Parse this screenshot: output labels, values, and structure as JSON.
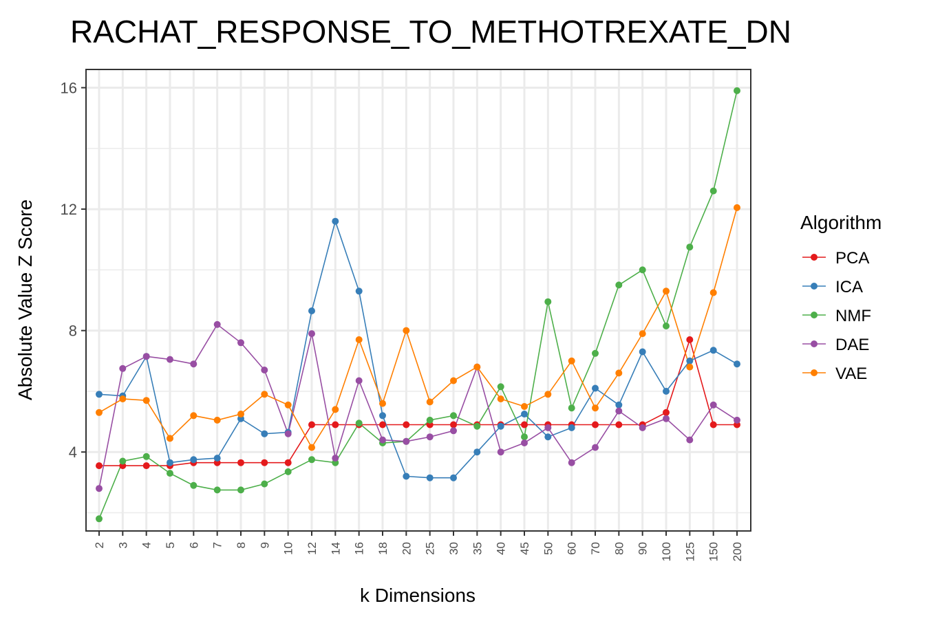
{
  "chart_data": {
    "type": "line",
    "title": "RACHAT_RESPONSE_TO_METHOTREXATE_DN",
    "xlabel": "k Dimensions",
    "ylabel": "Absolute Value Z Score",
    "categories": [
      "2",
      "3",
      "4",
      "5",
      "6",
      "7",
      "8",
      "9",
      "10",
      "12",
      "14",
      "16",
      "18",
      "20",
      "25",
      "30",
      "35",
      "40",
      "45",
      "50",
      "60",
      "70",
      "80",
      "90",
      "100",
      "125",
      "150",
      "200"
    ],
    "ylim": [
      1.4,
      16.6
    ],
    "yticks": [
      4,
      8,
      12,
      16
    ],
    "grid": true,
    "legend": {
      "title": "Algorithm",
      "placement": "right"
    },
    "series": [
      {
        "name": "PCA",
        "color": "#E41A1C",
        "values": [
          3.55,
          3.55,
          3.55,
          3.55,
          3.65,
          3.65,
          3.65,
          3.65,
          3.65,
          4.9,
          4.9,
          4.9,
          4.9,
          4.9,
          4.9,
          4.9,
          4.9,
          4.9,
          4.9,
          4.9,
          4.9,
          4.9,
          4.9,
          4.9,
          5.3,
          7.7,
          4.9,
          4.9
        ]
      },
      {
        "name": "ICA",
        "color": "#377EB8",
        "values": [
          5.9,
          5.85,
          7.15,
          3.65,
          3.75,
          3.8,
          5.1,
          4.6,
          4.65,
          8.65,
          11.6,
          9.3,
          5.2,
          3.2,
          3.15,
          3.15,
          4.0,
          4.85,
          5.25,
          4.5,
          4.8,
          6.1,
          5.55,
          7.3,
          6.0,
          7.0,
          7.35,
          6.9
        ]
      },
      {
        "name": "NMF",
        "color": "#4DAF4A",
        "values": [
          1.8,
          3.7,
          3.85,
          3.3,
          2.9,
          2.75,
          2.75,
          2.95,
          3.35,
          3.75,
          3.65,
          4.95,
          4.3,
          4.35,
          5.05,
          5.2,
          4.85,
          6.15,
          4.5,
          8.95,
          5.45,
          7.25,
          9.5,
          10.0,
          8.15,
          10.75,
          12.6,
          15.9
        ]
      },
      {
        "name": "DAE",
        "color": "#984EA3",
        "values": [
          2.8,
          6.75,
          7.15,
          7.05,
          6.9,
          8.2,
          7.6,
          6.7,
          4.6,
          7.9,
          3.8,
          6.35,
          4.4,
          4.35,
          4.5,
          4.7,
          6.8,
          4.0,
          4.3,
          4.8,
          3.65,
          4.15,
          5.35,
          4.8,
          5.1,
          4.4,
          5.55,
          5.05
        ]
      },
      {
        "name": "VAE",
        "color": "#FF7F00",
        "values": [
          5.3,
          5.75,
          5.7,
          4.45,
          5.2,
          5.05,
          5.25,
          5.9,
          5.55,
          4.15,
          5.4,
          7.7,
          5.6,
          8.0,
          5.65,
          6.35,
          6.8,
          5.75,
          5.5,
          5.9,
          7.0,
          5.45,
          6.6,
          7.9,
          9.3,
          6.8,
          9.25,
          12.05
        ]
      }
    ]
  }
}
